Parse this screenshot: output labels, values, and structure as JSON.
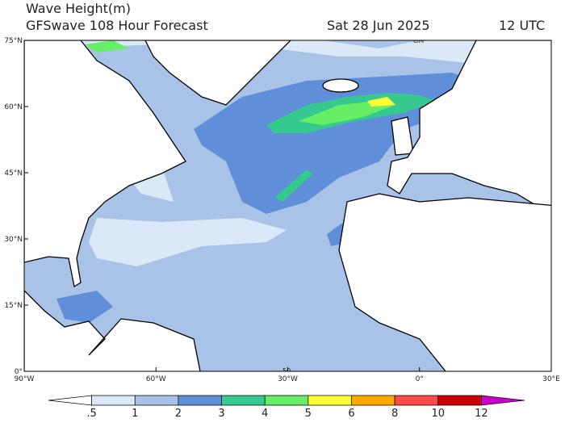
{
  "header": {
    "title": "Wave Height(m)",
    "subtitle": "GFSwave 108 Hour Forecast",
    "date": "Sat 28 Jun 2025",
    "time": "12 UTC"
  },
  "map": {
    "lat_labels": [
      "75°N",
      "60°N",
      "45°N",
      "30°N",
      "15°N",
      "0°"
    ],
    "lon_labels": [
      "90°W",
      "60°W",
      "30°W",
      "0°",
      "30°E"
    ],
    "annotations": [
      "GM",
      "50"
    ]
  },
  "colorbar": {
    "colors": [
      "#ffffff",
      "#dbe8f7",
      "#a9c3e8",
      "#5e8fd8",
      "#36c98f",
      "#66ee66",
      "#ffff33",
      "#ffaa00",
      "#ff4a4a",
      "#cc0000",
      "#cc00cc"
    ],
    "labels": [
      ".5",
      "1",
      "2",
      "3",
      "4",
      "5",
      "6",
      "8",
      "10",
      "12"
    ]
  }
}
